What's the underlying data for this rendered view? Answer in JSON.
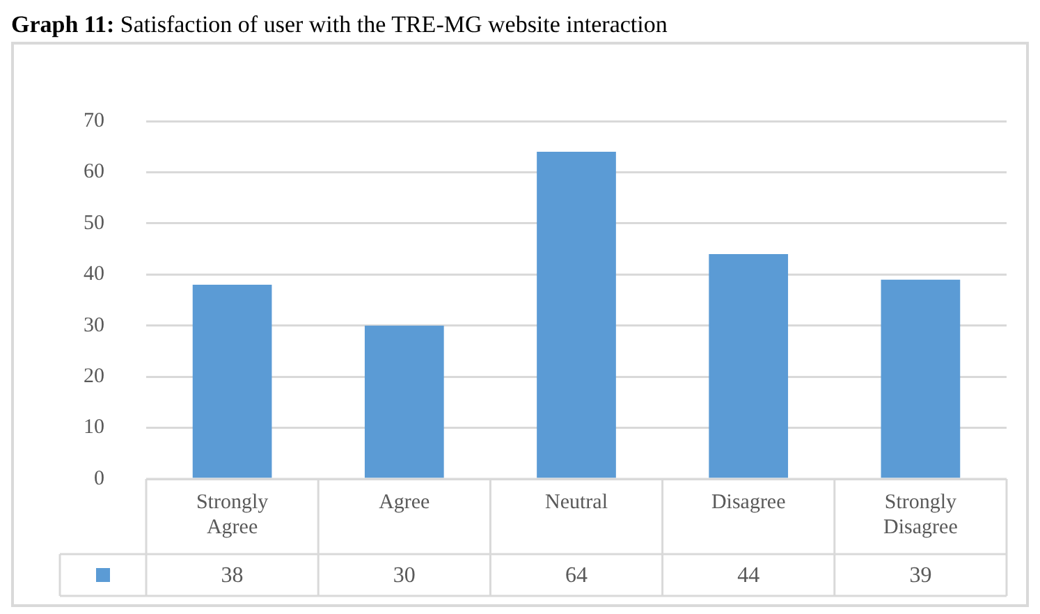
{
  "chart_data": {
    "type": "bar",
    "title": "Graph 11: Satisfaction of user with the TRE-MG website interaction",
    "categories": [
      "Strongly Agree",
      "Agree",
      "Neutral",
      "Disagree",
      "Strongly Disagree"
    ],
    "values": [
      38,
      30,
      64,
      44,
      39
    ],
    "color": "#5b9bd5",
    "ylim": [
      0,
      70
    ],
    "yticks": [
      0,
      10,
      20,
      30,
      40,
      50,
      60,
      70
    ],
    "grid": "y",
    "legend": false,
    "data_labels": true
  }
}
